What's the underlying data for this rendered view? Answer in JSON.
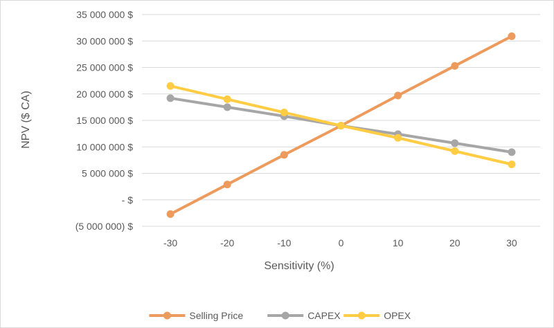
{
  "chart_data": {
    "type": "line",
    "title": "",
    "xlabel": "Sensitivity (%)",
    "ylabel": "NPV ($ CA)",
    "x": [
      -30,
      -20,
      -10,
      0,
      10,
      20,
      30
    ],
    "ylim": [
      -5000000,
      35000000
    ],
    "y_ticks": [
      {
        "value": 35000000,
        "label": "35 000 000 $"
      },
      {
        "value": 30000000,
        "label": "30 000 000 $"
      },
      {
        "value": 25000000,
        "label": "25 000 000 $"
      },
      {
        "value": 20000000,
        "label": "20 000 000 $"
      },
      {
        "value": 15000000,
        "label": "15 000 000 $"
      },
      {
        "value": 10000000,
        "label": "10 000 000 $"
      },
      {
        "value": 5000000,
        "label": "5 000 000 $"
      },
      {
        "value": 0,
        "label": "-   $"
      },
      {
        "value": -5000000,
        "label": "(5 000 000) $"
      }
    ],
    "x_tick_labels": [
      "-30",
      "-20",
      "-10",
      "0",
      "10",
      "20",
      "30"
    ],
    "grid": true,
    "legend_position": "bottom",
    "series": [
      {
        "name": "Selling Price",
        "color": "#ED9B5C",
        "values": [
          -2700000,
          2900000,
          8500000,
          14000000,
          19700000,
          25300000,
          30900000
        ]
      },
      {
        "name": "CAPEX",
        "color": "#A6A6A6",
        "values": [
          19200000,
          17500000,
          15800000,
          14000000,
          12400000,
          10700000,
          9000000
        ]
      },
      {
        "name": "OPEX",
        "color": "#FFCC44",
        "values": [
          21500000,
          19000000,
          16500000,
          14000000,
          11700000,
          9200000,
          6700000
        ]
      }
    ]
  }
}
